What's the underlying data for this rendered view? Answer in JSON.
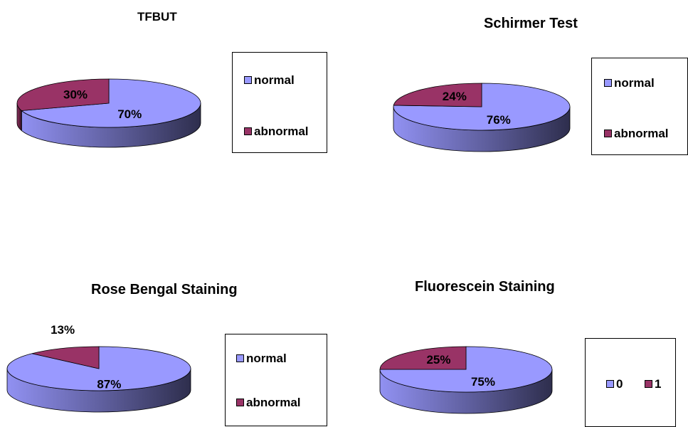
{
  "colors": {
    "normal": "#9999ff",
    "abnormal": "#993366"
  },
  "chart_data": [
    {
      "type": "pie",
      "title": "TFBUT",
      "categories": [
        "normal",
        "abnormal"
      ],
      "values": [
        70,
        30
      ],
      "data_labels": [
        "70%",
        "30%"
      ],
      "legend": [
        "normal",
        "abnormal"
      ],
      "legend_position": "right",
      "three_d": true
    },
    {
      "type": "pie",
      "title": "Schirmer Test",
      "categories": [
        "normal",
        "abnormal"
      ],
      "values": [
        76,
        24
      ],
      "data_labels": [
        "76%",
        "24%"
      ],
      "legend": [
        "normal",
        "abnormal"
      ],
      "legend_position": "right",
      "three_d": true
    },
    {
      "type": "pie",
      "title": "Rose Bengal Staining",
      "categories": [
        "normal",
        "abnormal"
      ],
      "values": [
        87,
        13
      ],
      "data_labels": [
        "87%",
        "13%"
      ],
      "legend": [
        "normal",
        "abnormal"
      ],
      "legend_position": "right",
      "three_d": true
    },
    {
      "type": "pie",
      "title": "Fluorescein Staining",
      "categories": [
        "0",
        "1"
      ],
      "values": [
        75,
        25
      ],
      "data_labels": [
        "75%",
        "25%"
      ],
      "legend": [
        "0",
        "1"
      ],
      "legend_position": "right",
      "three_d": true
    }
  ]
}
